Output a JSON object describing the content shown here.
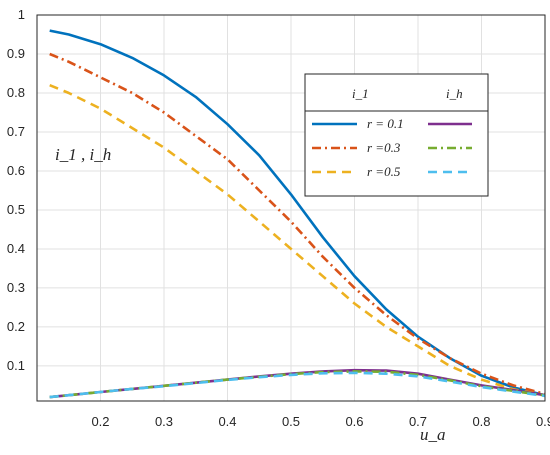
{
  "chart_data": {
    "type": "line",
    "title": "",
    "xlabel": "u_a",
    "ylabel": "i_1 , i_h",
    "xlim": [
      0.1,
      0.9
    ],
    "ylim": [
      0.01,
      1.0
    ],
    "xticks": [
      "0.2",
      "0.3",
      "0.4",
      "0.5",
      "0.6",
      "0.7",
      "0.8",
      "0.9"
    ],
    "yticks": [
      "0.1",
      "0.2",
      "0.3",
      "0.4",
      "0.5",
      "0.6",
      "0.7",
      "0.8",
      "0.9",
      "1"
    ],
    "grid": true,
    "legend": {
      "placement": "top-right",
      "col_headers": [
        "i_1",
        "i_h"
      ],
      "rows": [
        {
          "label": "r = 0.1",
          "color": "#0072BD"
        },
        {
          "label": "r =0.3",
          "color": "#D95319"
        },
        {
          "label": "r =0.5",
          "color": "#EDB120"
        }
      ]
    },
    "x": [
      0.12,
      0.15,
      0.2,
      0.25,
      0.3,
      0.35,
      0.4,
      0.45,
      0.5,
      0.55,
      0.6,
      0.65,
      0.7,
      0.75,
      0.8,
      0.85,
      0.9
    ],
    "series": [
      {
        "name": "i_1, r = 0.1",
        "color": "#0072BD",
        "dash": "solid",
        "values": [
          0.96,
          0.95,
          0.925,
          0.89,
          0.845,
          0.79,
          0.72,
          0.64,
          0.54,
          0.43,
          0.33,
          0.245,
          0.175,
          0.12,
          0.075,
          0.045,
          0.025
        ]
      },
      {
        "name": "i_1, r = 0.3",
        "color": "#D95319",
        "dash": "dashdot",
        "values": [
          0.9,
          0.88,
          0.84,
          0.8,
          0.75,
          0.69,
          0.63,
          0.55,
          0.47,
          0.38,
          0.3,
          0.23,
          0.17,
          0.12,
          0.08,
          0.05,
          0.028
        ]
      },
      {
        "name": "i_1, r = 0.5",
        "color": "#EDB120",
        "dash": "dashed",
        "values": [
          0.82,
          0.8,
          0.76,
          0.71,
          0.66,
          0.6,
          0.54,
          0.47,
          0.4,
          0.33,
          0.26,
          0.2,
          0.15,
          0.1,
          0.065,
          0.04,
          0.025
        ]
      },
      {
        "name": "i_h, r = 0.1",
        "color": "#7E2F8E",
        "dash": "solid",
        "values": [
          0.02,
          0.025,
          0.033,
          0.041,
          0.049,
          0.057,
          0.065,
          0.073,
          0.08,
          0.086,
          0.089,
          0.088,
          0.08,
          0.065,
          0.05,
          0.038,
          0.025
        ]
      },
      {
        "name": "i_h, r = 0.3",
        "color": "#77AC30",
        "dash": "dashdot",
        "values": [
          0.02,
          0.025,
          0.033,
          0.041,
          0.049,
          0.057,
          0.065,
          0.072,
          0.079,
          0.084,
          0.086,
          0.085,
          0.077,
          0.063,
          0.048,
          0.036,
          0.024
        ]
      },
      {
        "name": "i_h, r = 0.5",
        "color": "#4DBEEE",
        "dash": "dashed",
        "values": [
          0.02,
          0.025,
          0.033,
          0.041,
          0.048,
          0.056,
          0.064,
          0.071,
          0.077,
          0.081,
          0.082,
          0.08,
          0.073,
          0.06,
          0.046,
          0.034,
          0.023
        ]
      }
    ]
  }
}
